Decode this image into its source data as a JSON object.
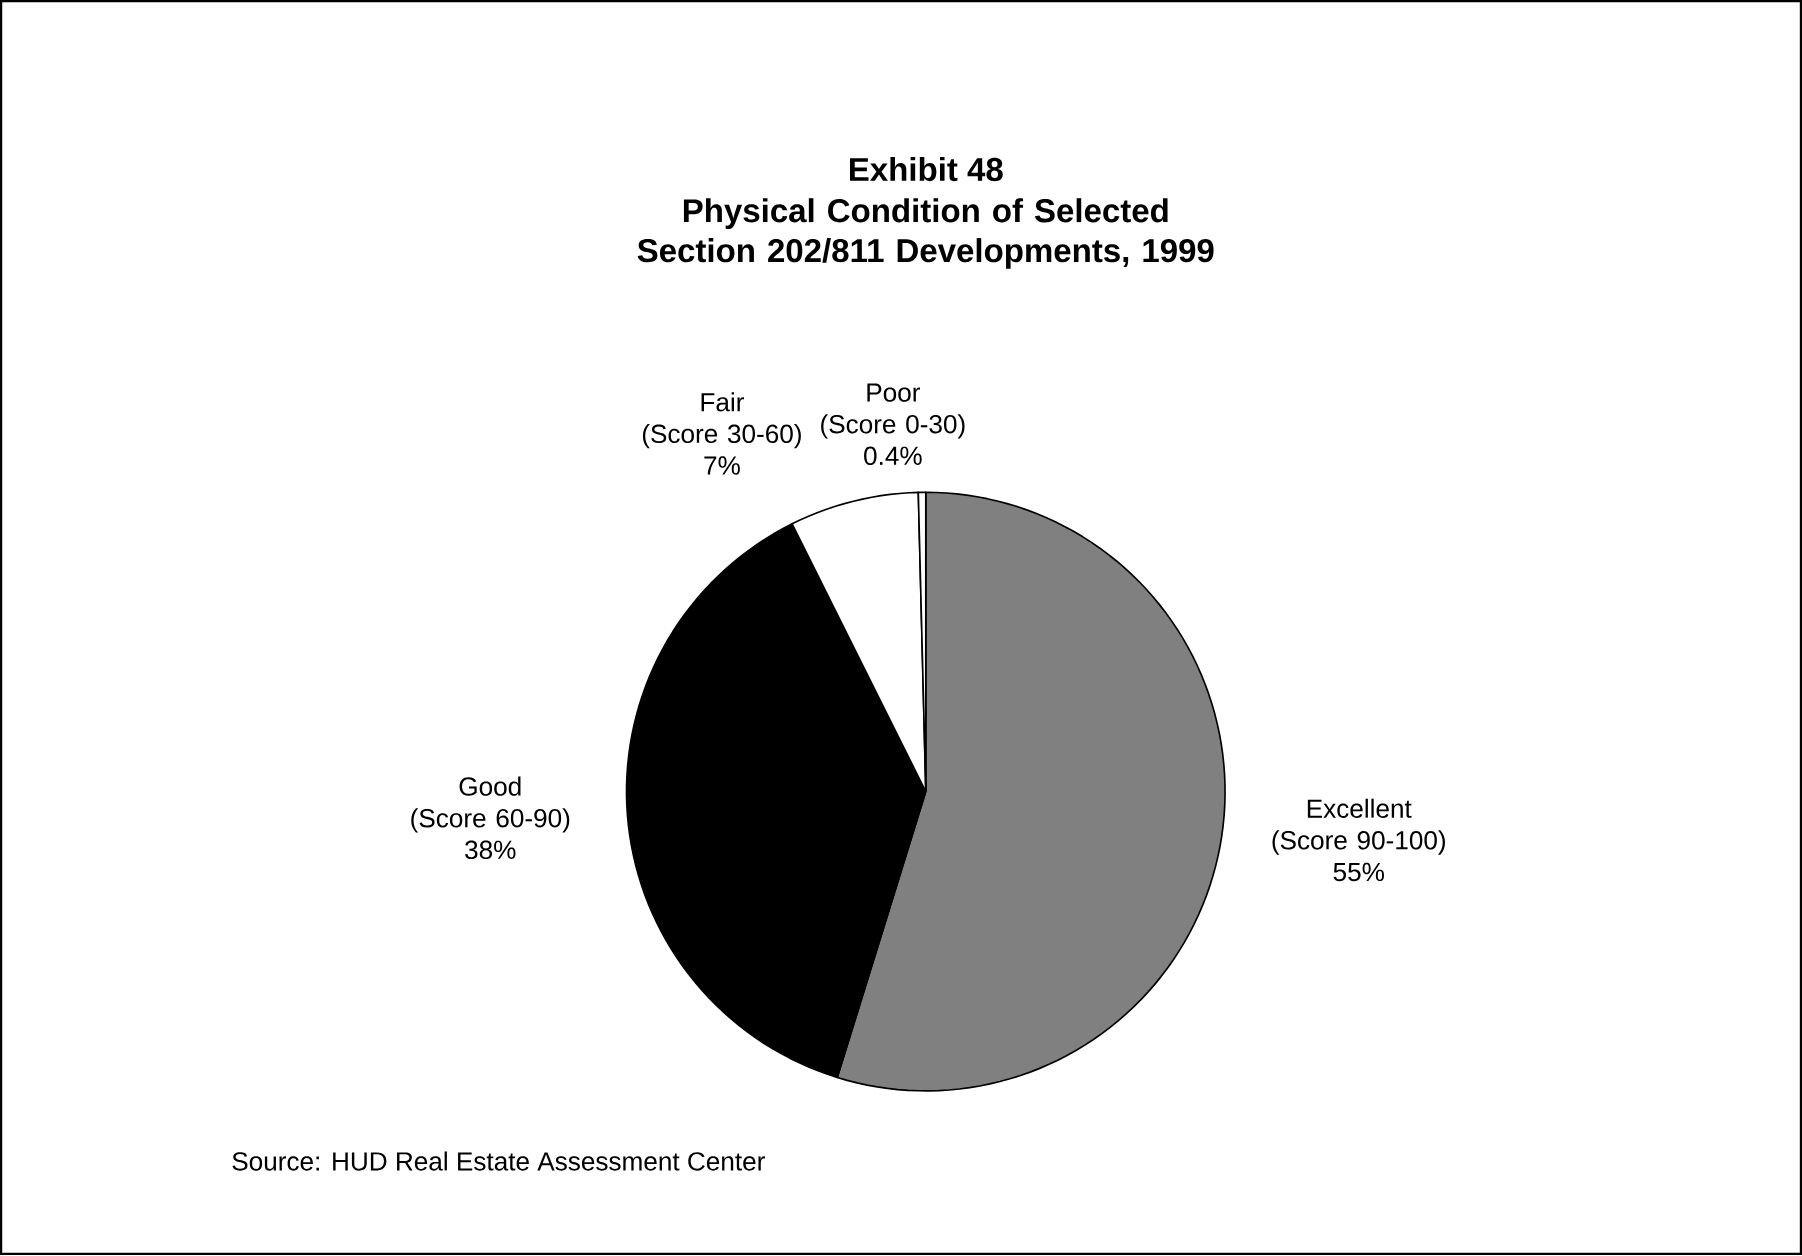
{
  "chart_data": {
    "type": "pie",
    "title": "Exhibit 48",
    "subtitle": "Physical Condition of Selected Section 202/811 Developments, 1999",
    "categories": [
      "Excellent (Score 90-100)",
      "Good (Score 60-90)",
      "Fair (Score 30-60)",
      "Poor (Score 0-30)"
    ],
    "values": [
      55,
      38,
      7,
      0.4
    ],
    "value_labels": [
      "55%",
      "38%",
      "7%",
      "0.4%"
    ],
    "colors": [
      "#808080",
      "#000000",
      "#ffffff",
      "#ffffff"
    ],
    "annotations": [
      "Source: HUD Real Estate Assessment Center"
    ]
  }
}
